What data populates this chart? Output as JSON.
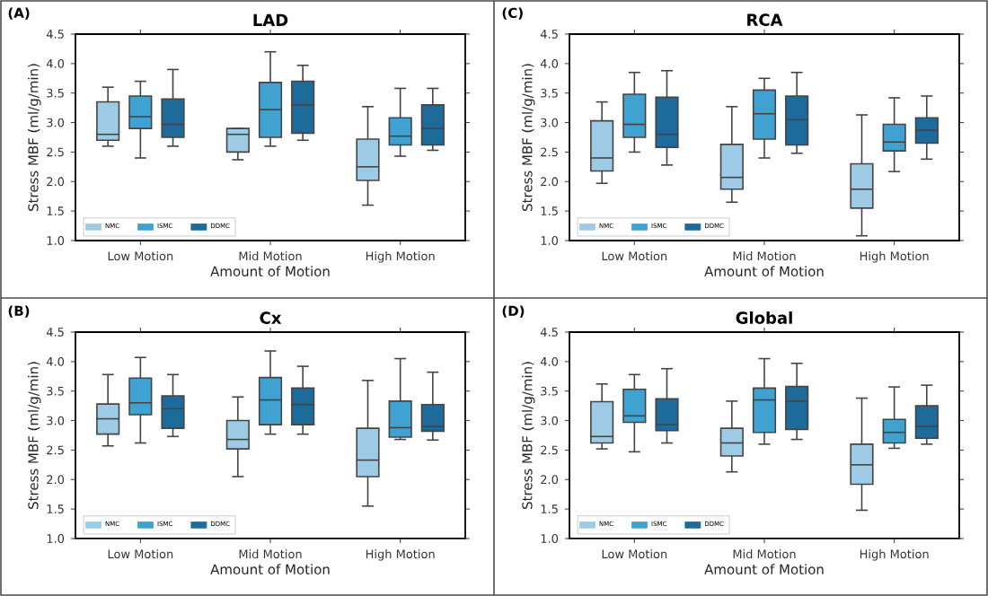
{
  "chart_data": [
    {
      "type": "box",
      "title": "LAD",
      "xlabel": "Amount of Motion",
      "ylabel": "Stress MBF (ml/g/min)",
      "annotations": [
        "(A)"
      ],
      "categories": [
        "Low Motion",
        "Mid Motion",
        "High Motion"
      ],
      "ylim": [
        1.0,
        4.5
      ],
      "yticks": [
        {
          "value": 1.0,
          "label": "1.0"
        },
        {
          "value": 1.5,
          "label": "1.5"
        },
        {
          "value": 2.0,
          "label": "2.0"
        },
        {
          "value": 2.5,
          "label": "2.5"
        },
        {
          "value": 3.0,
          "label": "3.0"
        },
        {
          "value": 3.5,
          "label": "3.5"
        },
        {
          "value": 4.0,
          "label": "4.0"
        },
        {
          "value": 4.5,
          "label": "4.5"
        }
      ],
      "legend": "bottom left",
      "series": [
        {
          "name": "NMC",
          "color": "#9dcbe5",
          "boxes": [
            {
              "low": 2.6,
              "q1": 2.7,
              "median": 2.8,
              "q3": 3.35,
              "high": 3.6
            },
            {
              "low": 2.37,
              "q1": 2.5,
              "median": 2.8,
              "q3": 2.9,
              "high": 2.9
            },
            {
              "low": 1.6,
              "q1": 2.02,
              "median": 2.25,
              "q3": 2.72,
              "high": 3.27
            }
          ]
        },
        {
          "name": "ISMC",
          "color": "#3fa2d1",
          "boxes": [
            {
              "low": 2.4,
              "q1": 2.9,
              "median": 3.1,
              "q3": 3.45,
              "high": 3.7
            },
            {
              "low": 2.6,
              "q1": 2.75,
              "median": 3.22,
              "q3": 3.68,
              "high": 4.2
            },
            {
              "low": 2.43,
              "q1": 2.62,
              "median": 2.77,
              "q3": 3.08,
              "high": 3.58
            }
          ]
        },
        {
          "name": "DDMC",
          "color": "#1d6b9b",
          "boxes": [
            {
              "low": 2.6,
              "q1": 2.75,
              "median": 2.97,
              "q3": 3.4,
              "high": 3.9
            },
            {
              "low": 2.7,
              "q1": 2.82,
              "median": 3.3,
              "q3": 3.7,
              "high": 3.97
            },
            {
              "low": 2.53,
              "q1": 2.62,
              "median": 2.9,
              "q3": 3.3,
              "high": 3.58
            }
          ]
        }
      ]
    },
    {
      "type": "box",
      "title": "RCA",
      "xlabel": "Amount of Motion",
      "ylabel": "Stress MBF (ml/g/min)",
      "annotations": [
        "(C)"
      ],
      "categories": [
        "Low Motion",
        "Mid Motion",
        "High Motion"
      ],
      "ylim": [
        1.0,
        4.5
      ],
      "yticks": [
        {
          "value": 1.0,
          "label": "1.0"
        },
        {
          "value": 1.5,
          "label": "1.5"
        },
        {
          "value": 2.0,
          "label": "2.0"
        },
        {
          "value": 2.5,
          "label": "2.5"
        },
        {
          "value": 3.0,
          "label": "3.0"
        },
        {
          "value": 3.5,
          "label": "3.5"
        },
        {
          "value": 4.0,
          "label": "4.0"
        },
        {
          "value": 4.5,
          "label": "4.5"
        }
      ],
      "legend": "bottom left",
      "series": [
        {
          "name": "NMC",
          "color": "#9dcbe5",
          "boxes": [
            {
              "low": 1.97,
              "q1": 2.18,
              "median": 2.4,
              "q3": 3.03,
              "high": 3.35
            },
            {
              "low": 1.65,
              "q1": 1.87,
              "median": 2.07,
              "q3": 2.63,
              "high": 3.27
            },
            {
              "low": 1.08,
              "q1": 1.55,
              "median": 1.87,
              "q3": 2.3,
              "high": 3.13
            }
          ]
        },
        {
          "name": "ISMC",
          "color": "#3fa2d1",
          "boxes": [
            {
              "low": 2.5,
              "q1": 2.75,
              "median": 2.97,
              "q3": 3.48,
              "high": 3.85
            },
            {
              "low": 2.4,
              "q1": 2.72,
              "median": 3.15,
              "q3": 3.55,
              "high": 3.75
            },
            {
              "low": 2.17,
              "q1": 2.52,
              "median": 2.67,
              "q3": 2.97,
              "high": 3.42
            }
          ]
        },
        {
          "name": "DDMC",
          "color": "#1d6b9b",
          "boxes": [
            {
              "low": 2.28,
              "q1": 2.58,
              "median": 2.8,
              "q3": 3.43,
              "high": 3.88
            },
            {
              "low": 2.48,
              "q1": 2.62,
              "median": 3.05,
              "q3": 3.45,
              "high": 3.85
            },
            {
              "low": 2.38,
              "q1": 2.65,
              "median": 2.87,
              "q3": 3.08,
              "high": 3.45
            }
          ]
        }
      ]
    },
    {
      "type": "box",
      "title": "Cx",
      "xlabel": "Amount of Motion",
      "ylabel": "Stress MBF (ml/g/min)",
      "annotations": [
        "(B)"
      ],
      "categories": [
        "Low Motion",
        "Mid Motion",
        "High Motion"
      ],
      "ylim": [
        1.0,
        4.5
      ],
      "yticks": [
        {
          "value": 1.0,
          "label": "1.0"
        },
        {
          "value": 1.5,
          "label": "1.5"
        },
        {
          "value": 2.0,
          "label": "2.0"
        },
        {
          "value": 2.5,
          "label": "2.5"
        },
        {
          "value": 3.0,
          "label": "3.0"
        },
        {
          "value": 3.5,
          "label": "3.5"
        },
        {
          "value": 4.0,
          "label": "4.0"
        },
        {
          "value": 4.5,
          "label": "4.5"
        }
      ],
      "legend": "bottom left",
      "series": [
        {
          "name": "NMC",
          "color": "#9dcbe5",
          "boxes": [
            {
              "low": 2.57,
              "q1": 2.77,
              "median": 3.03,
              "q3": 3.28,
              "high": 3.78
            },
            {
              "low": 2.05,
              "q1": 2.52,
              "median": 2.68,
              "q3": 3.0,
              "high": 3.4
            },
            {
              "low": 1.55,
              "q1": 2.05,
              "median": 2.33,
              "q3": 2.87,
              "high": 3.68
            }
          ]
        },
        {
          "name": "ISMC",
          "color": "#3fa2d1",
          "boxes": [
            {
              "low": 2.62,
              "q1": 3.1,
              "median": 3.3,
              "q3": 3.72,
              "high": 4.07
            },
            {
              "low": 2.77,
              "q1": 2.93,
              "median": 3.35,
              "q3": 3.73,
              "high": 4.18
            },
            {
              "low": 2.68,
              "q1": 2.72,
              "median": 2.88,
              "q3": 3.33,
              "high": 4.05
            }
          ]
        },
        {
          "name": "DDMC",
          "color": "#1d6b9b",
          "boxes": [
            {
              "low": 2.73,
              "q1": 2.87,
              "median": 3.2,
              "q3": 3.42,
              "high": 3.78
            },
            {
              "low": 2.77,
              "q1": 2.93,
              "median": 3.27,
              "q3": 3.55,
              "high": 3.92
            },
            {
              "low": 2.67,
              "q1": 2.82,
              "median": 2.9,
              "q3": 3.27,
              "high": 3.82
            }
          ]
        }
      ]
    },
    {
      "type": "box",
      "title": "Global",
      "xlabel": "Amount of Motion",
      "ylabel": "Stress MBF (ml/g/min)",
      "annotations": [
        "(D)"
      ],
      "categories": [
        "Low Motion",
        "Mid Motion",
        "High Motion"
      ],
      "ylim": [
        1.0,
        4.5
      ],
      "yticks": [
        {
          "value": 1.0,
          "label": "1.0"
        },
        {
          "value": 1.5,
          "label": "1.5"
        },
        {
          "value": 2.0,
          "label": "2.0"
        },
        {
          "value": 2.5,
          "label": "2.5"
        },
        {
          "value": 3.0,
          "label": "3.0"
        },
        {
          "value": 3.5,
          "label": "3.5"
        },
        {
          "value": 4.0,
          "label": "4.0"
        },
        {
          "value": 4.5,
          "label": "4.5"
        }
      ],
      "legend": "bottom left",
      "series": [
        {
          "name": "NMC",
          "color": "#9dcbe5",
          "boxes": [
            {
              "low": 2.52,
              "q1": 2.62,
              "median": 2.73,
              "q3": 3.32,
              "high": 3.62
            },
            {
              "low": 2.13,
              "q1": 2.4,
              "median": 2.62,
              "q3": 2.87,
              "high": 3.33
            },
            {
              "low": 1.48,
              "q1": 1.92,
              "median": 2.25,
              "q3": 2.6,
              "high": 3.38
            }
          ]
        },
        {
          "name": "ISMC",
          "color": "#3fa2d1",
          "boxes": [
            {
              "low": 2.47,
              "q1": 2.97,
              "median": 3.08,
              "q3": 3.53,
              "high": 3.78
            },
            {
              "low": 2.6,
              "q1": 2.8,
              "median": 3.35,
              "q3": 3.55,
              "high": 4.05
            },
            {
              "low": 2.53,
              "q1": 2.62,
              "median": 2.8,
              "q3": 3.02,
              "high": 3.57
            }
          ]
        },
        {
          "name": "DDMC",
          "color": "#1d6b9b",
          "boxes": [
            {
              "low": 2.62,
              "q1": 2.83,
              "median": 2.93,
              "q3": 3.37,
              "high": 3.88
            },
            {
              "low": 2.68,
              "q1": 2.85,
              "median": 3.33,
              "q3": 3.58,
              "high": 3.97
            },
            {
              "low": 2.6,
              "q1": 2.7,
              "median": 2.9,
              "q3": 3.25,
              "high": 3.6
            }
          ]
        }
      ]
    }
  ]
}
